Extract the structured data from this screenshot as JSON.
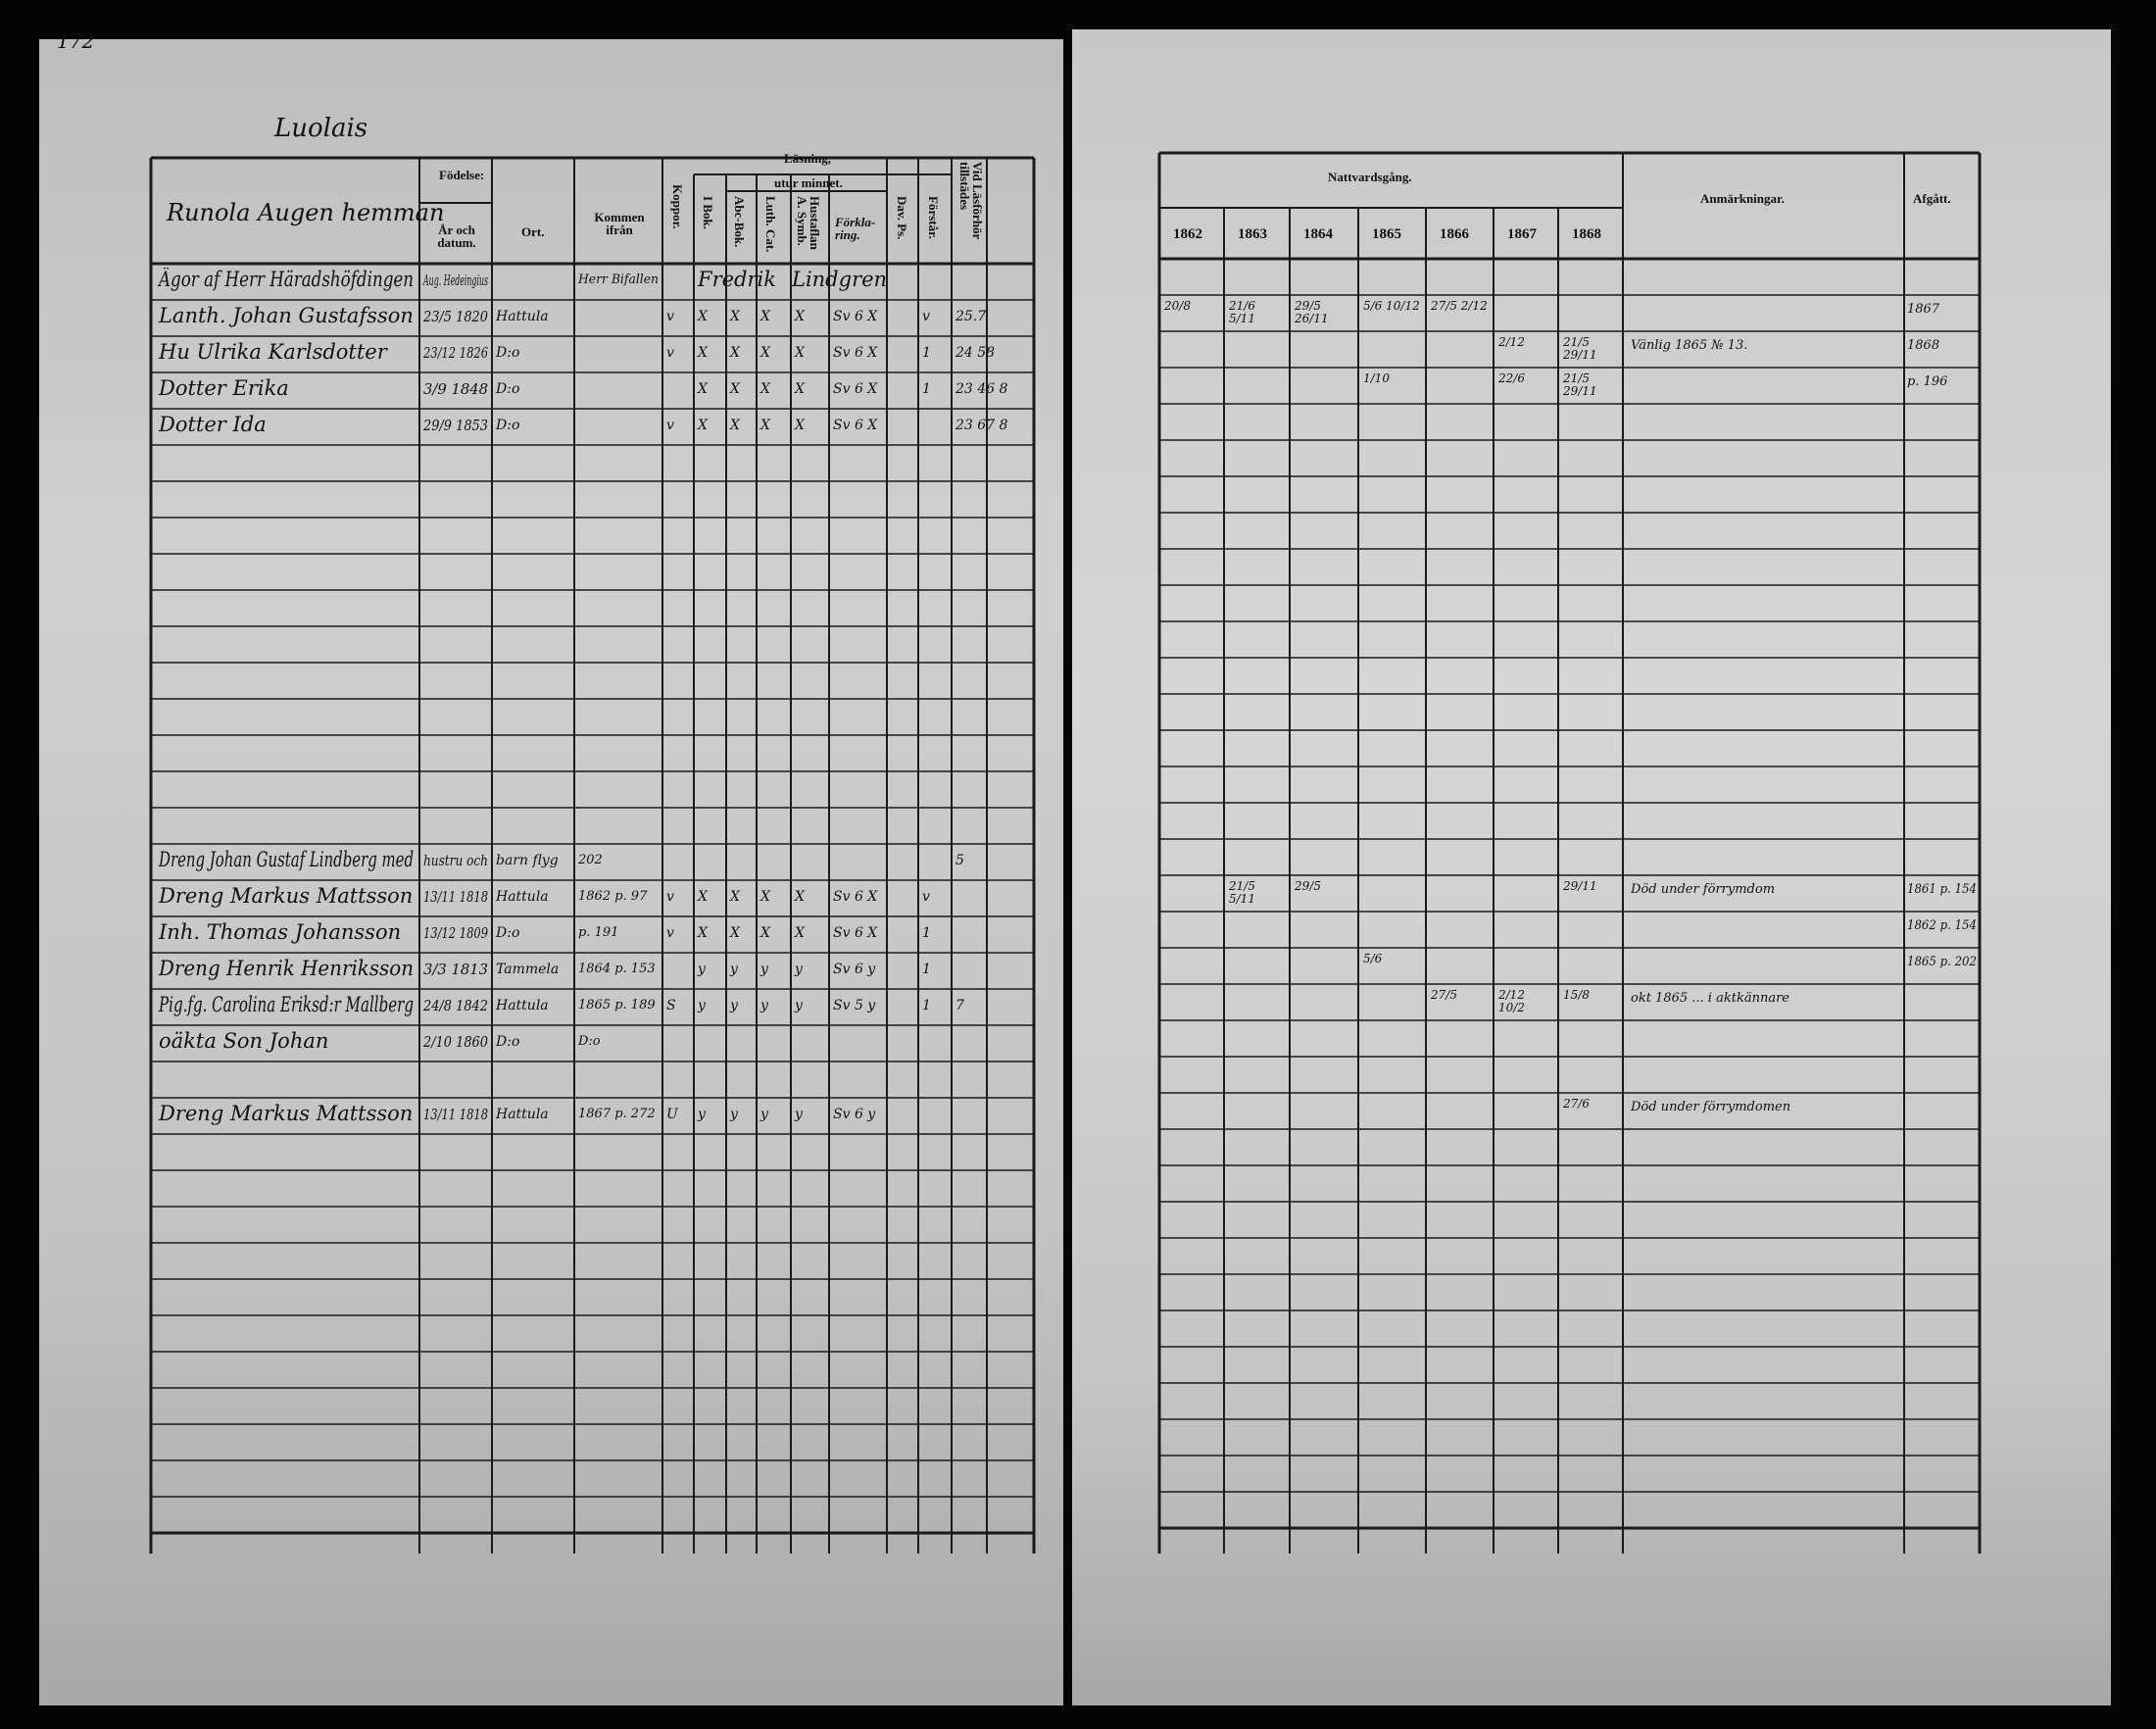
{
  "page_number": "172",
  "village": "Luolais",
  "left_header": {
    "household": "Runola Augen hemman",
    "birth": "Födelse:",
    "birth_date": "År och datum.",
    "birth_place": "Ort.",
    "came_from": "Kommen ifrån",
    "smallpox": "Koppor.",
    "reading": "Läsning,",
    "by_heart": "utur minnet.",
    "book": "I Bok.",
    "abc": "Abc-Bok.",
    "catechism": "Luth. Cat.",
    "hustaflan": "Hustaflan A. Symb.",
    "explanation": "Förkla-ring.",
    "psalms": "Dav. Ps.",
    "understanding": "Förstår.",
    "exam": "Vid Läsförhör tillstädes"
  },
  "entries": [
    {
      "row": 0,
      "name": "Ägor af Herr Häradshöfdingen",
      "date": "Aug. Hedeingius",
      "place": "",
      "from": "Herr Bifallen",
      "marks": [
        "Fredrik",
        "Lindgren"
      ]
    },
    {
      "row": 1,
      "name": "Lanth. Johan Gustafsson",
      "date": "23/5 1820",
      "place": "Hattula",
      "from": "",
      "marks": [
        "v",
        "X",
        "X",
        "X",
        "X",
        "Sv 6 X",
        "",
        "v",
        "25.7"
      ]
    },
    {
      "row": 2,
      "name": "Hu Ulrika Karlsdotter",
      "date": "23/12 1826",
      "place": "D:o",
      "from": "",
      "marks": [
        "v",
        "X",
        "X",
        "X",
        "X",
        "Sv 6 X",
        "",
        "1",
        "24 58"
      ]
    },
    {
      "row": 3,
      "name": "Dotter Erika",
      "date": "3/9 1848",
      "place": "D:o",
      "from": "",
      "marks": [
        "",
        "X",
        "X",
        "X",
        "X",
        "Sv 6 X",
        "",
        "1",
        "23 46 8"
      ]
    },
    {
      "row": 4,
      "name": "Dotter Ida",
      "date": "29/9 1853",
      "place": "D:o",
      "from": "",
      "marks": [
        "v",
        "X",
        "X",
        "X",
        "X",
        "Sv 6 X",
        "",
        "",
        "23 67 8"
      ]
    },
    {
      "row": 16,
      "name": "Dreng Johan Gustaf Lindberg med",
      "date": "hustru och",
      "place": "barn flyg",
      "from": "202",
      "marks": [
        "",
        "",
        "",
        "",
        "",
        "",
        "",
        "",
        "5"
      ]
    },
    {
      "row": 17,
      "name": "Dreng Markus Mattsson",
      "date": "13/11 1818",
      "place": "Hattula",
      "from": "1862 p. 97",
      "marks": [
        "v",
        "X",
        "X",
        "X",
        "X",
        "Sv 6 X",
        "",
        "v",
        ""
      ]
    },
    {
      "row": 18,
      "name": "Inh. Thomas Johansson",
      "date": "13/12 1809",
      "place": "D:o",
      "from": "p. 191",
      "marks": [
        "v",
        "X",
        "X",
        "X",
        "X",
        "Sv 6 X",
        "",
        "1",
        ""
      ]
    },
    {
      "row": 19,
      "name": "Dreng Henrik Henriksson",
      "date": "3/3 1813",
      "place": "Tammela",
      "from": "1864 p. 153",
      "marks": [
        "",
        "y",
        "y",
        "y",
        "y",
        "Sv 6 y",
        "",
        "1",
        ""
      ]
    },
    {
      "row": 20,
      "name": "Pig.fg. Carolina Eriksd:r Mallberg",
      "date": "24/8 1842",
      "place": "Hattula",
      "from": "1865 p. 189",
      "marks": [
        "S",
        "y",
        "y",
        "y",
        "y",
        "Sv 5 y",
        "",
        "1",
        "7"
      ]
    },
    {
      "row": 21,
      "name": "oäkta Son Johan",
      "date": "2/10 1860",
      "place": "D:o",
      "from": "D:o",
      "marks": []
    },
    {
      "row": 23,
      "name": "Dreng Markus Mattsson",
      "date": "13/11 1818",
      "place": "Hattula",
      "from": "1867 p. 272",
      "marks": [
        "U",
        "y",
        "y",
        "y",
        "y",
        "Sv 6 y",
        "",
        "",
        ""
      ]
    }
  ],
  "right_header": {
    "communion": "Nattvardsgång.",
    "years": [
      "1862",
      "1863",
      "1864",
      "1865",
      "1866",
      "1867",
      "1868"
    ],
    "remarks": "Anmärkningar.",
    "departed": "Afgått."
  },
  "right_entries": [
    {
      "row": 1,
      "cells": [
        "20/8",
        "21/6 5/11",
        "29/5 26/11",
        "5/6 10/12",
        "27/5 2/12",
        "",
        ""
      ],
      "remark": "",
      "departed": "1867"
    },
    {
      "row": 2,
      "cells": [
        "",
        "",
        "",
        "",
        "",
        "2/12",
        "21/5 29/11"
      ],
      "remark": "Vänlig 1865 № 13.",
      "departed": "1868"
    },
    {
      "row": 3,
      "cells": [
        "",
        "",
        "",
        "1/10",
        "",
        "22/6",
        "21/5 29/11"
      ],
      "remark": "",
      "departed": "p. 196"
    },
    {
      "row": 17,
      "cells": [
        "",
        "21/5 5/11",
        "29/5",
        "",
        "",
        "",
        "29/11"
      ],
      "remark": "Död under förrymdom",
      "departed": "1861 p. 154"
    },
    {
      "row": 18,
      "cells": [
        "",
        "",
        "",
        "",
        "",
        "",
        ""
      ],
      "remark": "",
      "departed": "1862 p. 154"
    },
    {
      "row": 19,
      "cells": [
        "",
        "",
        "",
        "5/6",
        "",
        "",
        ""
      ],
      "remark": "",
      "departed": "1865 p. 202"
    },
    {
      "row": 20,
      "cells": [
        "",
        "",
        "",
        "",
        "27/5",
        "2/12 10/2",
        "15/8"
      ],
      "remark": "okt 1865 ... i aktkännare",
      "departed": ""
    },
    {
      "row": 23,
      "cells": [
        "",
        "",
        "",
        "",
        "",
        "",
        "27/6"
      ],
      "remark": "Död under förrymdomen",
      "departed": ""
    }
  ]
}
